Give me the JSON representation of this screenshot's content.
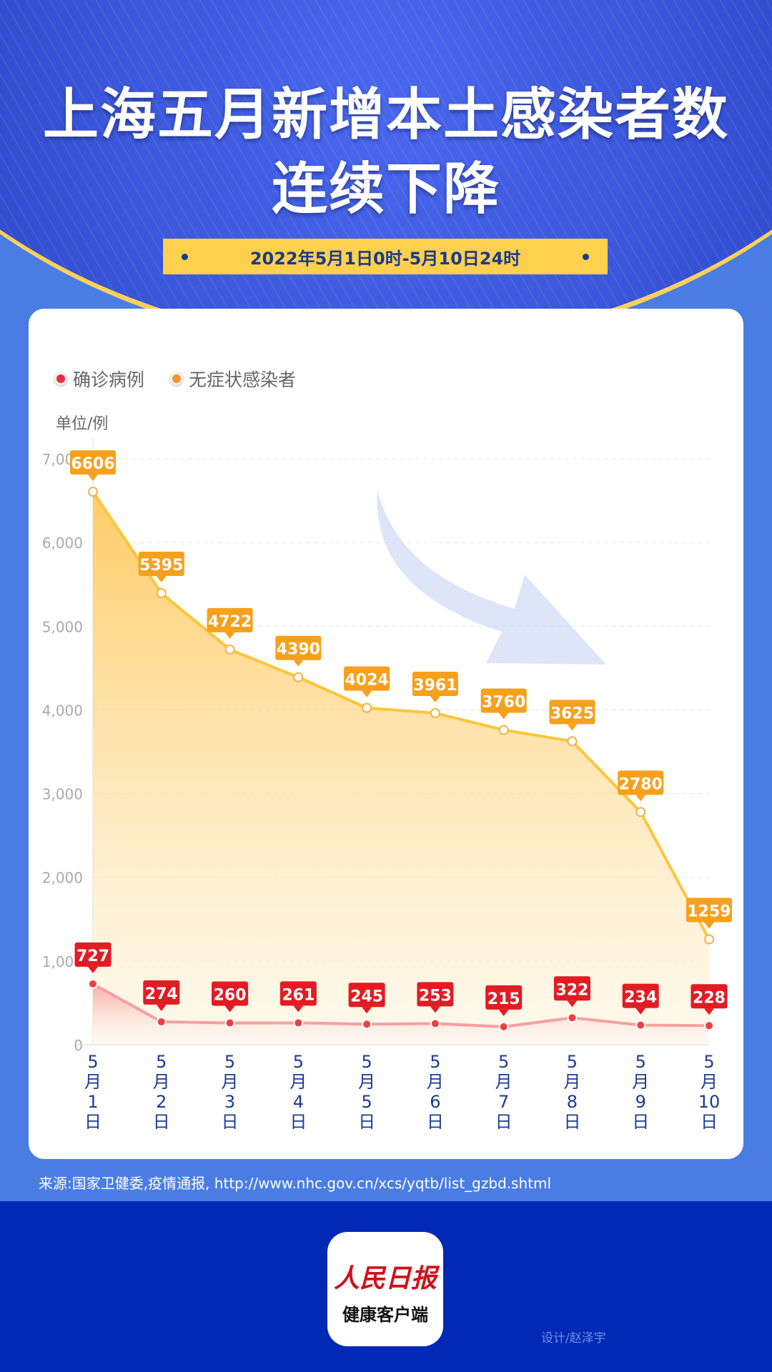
{
  "header": {
    "title_line1": "上海五月新增本土感染者数",
    "title_line2": "连续下降",
    "date_range": "2022年5月1日0时-5月10日24时"
  },
  "legend": [
    {
      "label": "确诊病例",
      "color": "#e8303a"
    },
    {
      "label": "无症状感染者",
      "color": "#f0962a"
    }
  ],
  "unit": "单位/例",
  "chart_data": {
    "type": "area",
    "categories": [
      "5月1日",
      "5月2日",
      "5月3日",
      "5月4日",
      "5月5日",
      "5月6日",
      "5月7日",
      "5月8日",
      "5月9日",
      "5月10日"
    ],
    "series": [
      {
        "name": "无症状感染者",
        "values": [
          6606,
          5395,
          4722,
          4390,
          4024,
          3961,
          3760,
          3625,
          2780,
          1259
        ],
        "color": "#f7a01c"
      },
      {
        "name": "确诊病例",
        "values": [
          727,
          274,
          260,
          261,
          245,
          253,
          215,
          322,
          234,
          228
        ],
        "color": "#e31b23"
      }
    ],
    "ylim": [
      0,
      7000
    ],
    "yticks": [
      "0",
      "1,000",
      "2,000",
      "3,000",
      "4,000",
      "5,000",
      "6,000",
      "7,000"
    ],
    "grid": true,
    "legend_position": "top-left"
  },
  "footer": {
    "source": "来源:国家卫健委,疫情通报, http://www.nhc.gov.cn/xcs/yqtb/list_gzbd.shtml",
    "logo_main": "人民日报",
    "logo_sub": "健康客户端",
    "designer": "设计/赵泽宇"
  }
}
